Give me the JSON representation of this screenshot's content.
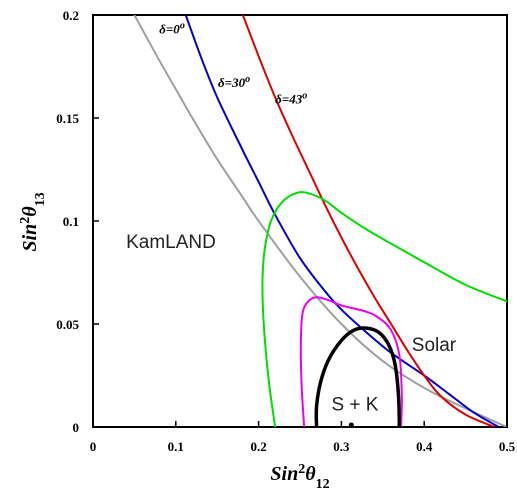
{
  "chart_data": {
    "type": "line",
    "x_axis": {
      "label_main": "Sin",
      "label_sup": "2",
      "label_theta": "θ",
      "label_sub": "12",
      "range": [
        0,
        0.5
      ],
      "ticks": [
        {
          "value": 0,
          "label": "0"
        },
        {
          "value": 0.1,
          "label": "0.1"
        },
        {
          "value": 0.2,
          "label": "0.2"
        },
        {
          "value": 0.3,
          "label": "0.3"
        },
        {
          "value": 0.4,
          "label": "0.4"
        },
        {
          "value": 0.5,
          "label": "0.5"
        }
      ]
    },
    "y_axis": {
      "label_main": "Sin",
      "label_sup": "2",
      "label_theta": "θ",
      "label_sub": "13",
      "range": [
        0,
        0.2
      ],
      "ticks": [
        {
          "value": 0,
          "label": "0"
        },
        {
          "value": 0.05,
          "label": "0.05"
        },
        {
          "value": 0.1,
          "label": "0.1"
        },
        {
          "value": 0.15,
          "label": "0.15"
        },
        {
          "value": 0.2,
          "label": "0.2"
        }
      ]
    },
    "series": [
      {
        "key": "kamland",
        "name": "KamLAND",
        "color": "#a0a0a0",
        "points": [
          [
            0.05,
            0.2
          ],
          [
            0.08,
            0.178
          ],
          [
            0.1,
            0.164
          ],
          [
            0.12,
            0.15
          ],
          [
            0.15,
            0.13
          ],
          [
            0.18,
            0.112
          ],
          [
            0.2,
            0.1
          ],
          [
            0.25,
            0.073
          ],
          [
            0.3,
            0.05
          ],
          [
            0.35,
            0.032
          ],
          [
            0.4,
            0.019
          ],
          [
            0.45,
            0.009
          ],
          [
            0.5,
            0.0
          ]
        ]
      },
      {
        "key": "delta0",
        "name": "δ=0",
        "color": "#0000cc",
        "points": [
          [
            0.112,
            0.2
          ],
          [
            0.13,
            0.18
          ],
          [
            0.15,
            0.16
          ],
          [
            0.18,
            0.135
          ],
          [
            0.2,
            0.119
          ],
          [
            0.22,
            0.103
          ],
          [
            0.25,
            0.082
          ],
          [
            0.28,
            0.066
          ],
          [
            0.3,
            0.057
          ],
          [
            0.33,
            0.046
          ],
          [
            0.36,
            0.036
          ],
          [
            0.4,
            0.025
          ],
          [
            0.43,
            0.016
          ],
          [
            0.46,
            0.007
          ],
          [
            0.49,
            0.0
          ]
        ]
      },
      {
        "key": "delta30",
        "name": "δ=30",
        "color": "#dd0000",
        "points": [
          [
            0.181,
            0.2
          ],
          [
            0.2,
            0.18
          ],
          [
            0.22,
            0.16
          ],
          [
            0.24,
            0.142
          ],
          [
            0.26,
            0.125
          ],
          [
            0.28,
            0.108
          ],
          [
            0.3,
            0.092
          ],
          [
            0.32,
            0.077
          ],
          [
            0.34,
            0.063
          ],
          [
            0.36,
            0.05
          ],
          [
            0.38,
            0.037
          ],
          [
            0.4,
            0.025
          ],
          [
            0.42,
            0.015
          ],
          [
            0.45,
            0.006
          ],
          [
            0.485,
            0.0
          ]
        ]
      },
      {
        "key": "solar",
        "name": "Solar",
        "color": "#00dd00",
        "points": [
          [
            0.22,
            0.0
          ],
          [
            0.213,
            0.02
          ],
          [
            0.208,
            0.04
          ],
          [
            0.205,
            0.06
          ],
          [
            0.205,
            0.075
          ],
          [
            0.208,
            0.088
          ],
          [
            0.215,
            0.1
          ],
          [
            0.228,
            0.109
          ],
          [
            0.245,
            0.1135
          ],
          [
            0.26,
            0.1135
          ],
          [
            0.28,
            0.11
          ],
          [
            0.3,
            0.104
          ],
          [
            0.33,
            0.096
          ],
          [
            0.36,
            0.089
          ],
          [
            0.4,
            0.08
          ],
          [
            0.45,
            0.069
          ],
          [
            0.5,
            0.061
          ]
        ]
      },
      {
        "key": "magenta",
        "name": "",
        "color": "#ee00ee",
        "points": [
          [
            0.255,
            0.0
          ],
          [
            0.252,
            0.02
          ],
          [
            0.251,
            0.04
          ],
          [
            0.253,
            0.055
          ],
          [
            0.26,
            0.061
          ],
          [
            0.27,
            0.063
          ],
          [
            0.285,
            0.0615
          ],
          [
            0.3,
            0.059
          ],
          [
            0.33,
            0.056
          ],
          [
            0.345,
            0.053
          ],
          [
            0.36,
            0.047
          ],
          [
            0.37,
            0.035
          ],
          [
            0.373,
            0.015
          ],
          [
            0.372,
            0.0
          ]
        ]
      },
      {
        "key": "sk",
        "name": "S + K",
        "color": "#000000",
        "points": [
          [
            0.27,
            0.0
          ],
          [
            0.27,
            0.01
          ],
          [
            0.275,
            0.022
          ],
          [
            0.285,
            0.033
          ],
          [
            0.3,
            0.042
          ],
          [
            0.315,
            0.047
          ],
          [
            0.33,
            0.048
          ],
          [
            0.345,
            0.046
          ],
          [
            0.357,
            0.04
          ],
          [
            0.365,
            0.03
          ],
          [
            0.369,
            0.015
          ],
          [
            0.37,
            0.0
          ]
        ]
      }
    ],
    "curve_labels": [
      {
        "key": "delta0",
        "delta": "δ=0",
        "sup": "o",
        "x": 0.08,
        "y": 0.191
      },
      {
        "key": "delta30",
        "delta": "δ=30",
        "sup": "o",
        "x": 0.151,
        "y": 0.165
      },
      {
        "key": "delta43",
        "delta": "δ=43",
        "sup": "o",
        "x": 0.22,
        "y": 0.157
      }
    ],
    "region_labels": [
      {
        "key": "kamland",
        "text": "KamLAND",
        "x": 0.04,
        "y": 0.087
      },
      {
        "key": "solar",
        "text": "Solar",
        "x": 0.385,
        "y": 0.037
      },
      {
        "key": "sk",
        "text": "S + K",
        "x": 0.288,
        "y": 0.008
      }
    ],
    "marker": {
      "x": 0.312,
      "y": 0.0
    },
    "grid": false,
    "legend": "none"
  }
}
